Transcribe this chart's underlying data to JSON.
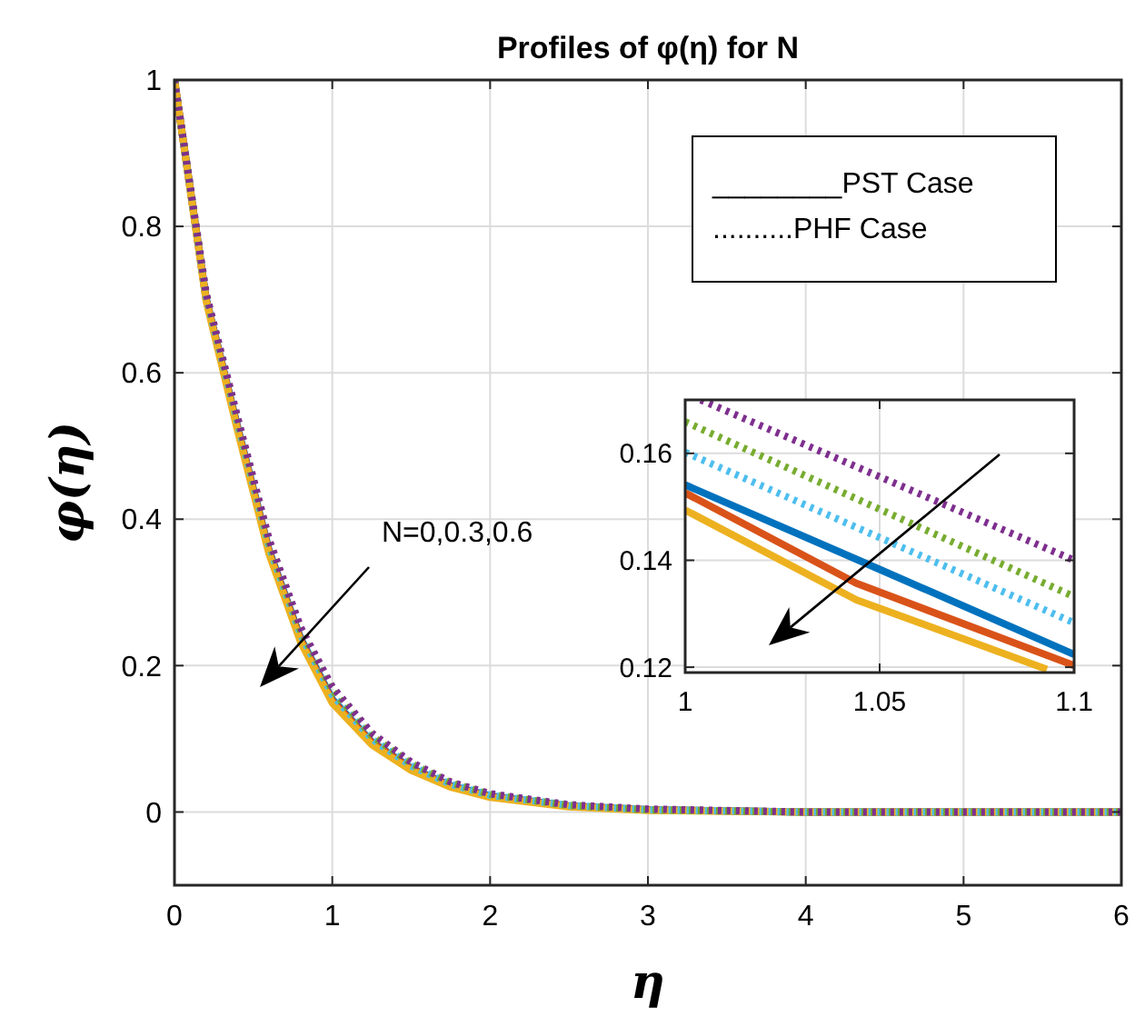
{
  "chart_data": [
    {
      "type": "line",
      "title": "Profiles of φ(η) for N",
      "xlabel": "η",
      "ylabel": "φ(η)",
      "x": [
        0,
        0.2,
        0.4,
        0.6,
        0.8,
        1,
        1.25,
        1.5,
        1.75,
        2,
        2.5,
        3,
        4,
        5,
        6
      ],
      "xlim": [
        0,
        6
      ],
      "ylim": [
        -0.1,
        1
      ],
      "xticks": [
        0,
        1,
        2,
        3,
        4,
        5,
        6
      ],
      "yticks": [
        0,
        0.2,
        0.4,
        0.6,
        0.8,
        1
      ],
      "grid": true,
      "annotations": [
        "________PST Case",
        "..........PHF Case",
        "N=0,0.3,0.6"
      ],
      "series": [
        {
          "color": "#0072bd",
          "line_style": "solid",
          "values": [
            1,
            0.702,
            0.526,
            0.357,
            0.237,
            0.154,
            0.096,
            0.06,
            0.036,
            0.022,
            0.008,
            0.003,
            0,
            0,
            0
          ]
        },
        {
          "color": "#d95319",
          "line_style": "solid",
          "values": [
            1,
            0.701,
            0.524,
            0.355,
            0.235,
            0.152,
            0.095,
            0.059,
            0.035,
            0.021,
            0.008,
            0.003,
            0,
            0,
            0
          ]
        },
        {
          "color": "#edb120",
          "line_style": "solid",
          "values": [
            1,
            0.699,
            0.521,
            0.352,
            0.232,
            0.149,
            0.092,
            0.057,
            0.034,
            0.02,
            0.007,
            0.002,
            0,
            0,
            0
          ]
        },
        {
          "color": "#4dbeee",
          "line_style": "dotted",
          "values": [
            1,
            0.705,
            0.531,
            0.362,
            0.242,
            0.16,
            0.1,
            0.063,
            0.038,
            0.023,
            0.009,
            0.003,
            0,
            0,
            0
          ]
        },
        {
          "color": "#77ac30",
          "line_style": "dotted",
          "values": [
            1,
            0.707,
            0.535,
            0.367,
            0.247,
            0.166,
            0.104,
            0.066,
            0.04,
            0.024,
            0.009,
            0.003,
            0,
            0,
            0
          ]
        },
        {
          "color": "#7e2f8e",
          "line_style": "dotted",
          "values": [
            1,
            0.709,
            0.539,
            0.372,
            0.252,
            0.171,
            0.108,
            0.068,
            0.041,
            0.025,
            0.01,
            0.004,
            0,
            0,
            0
          ]
        }
      ]
    },
    {
      "type": "line",
      "xlim": [
        1,
        1.1
      ],
      "ylim": [
        0.119,
        0.17
      ],
      "xticks": [
        1,
        1.05,
        1.1
      ],
      "yticks": [
        0.12,
        0.14,
        0.16
      ],
      "grid": true,
      "series": [
        {
          "color": "#0072bd",
          "line_style": "solid",
          "x": [
            1,
            1.05,
            1.1
          ],
          "values": [
            0.1541,
            0.1383,
            0.1224
          ]
        },
        {
          "color": "#d95319",
          "line_style": "solid",
          "x": [
            1,
            1.044,
            1.1
          ],
          "values": [
            0.1526,
            0.1357,
            0.1203
          ]
        },
        {
          "color": "#edb120",
          "line_style": "solid",
          "x": [
            1,
            1.044,
            1.093
          ],
          "values": [
            0.1494,
            0.1326,
            0.1196
          ]
        },
        {
          "color": "#4dbeee",
          "line_style": "dotted",
          "x": [
            1,
            1.1
          ],
          "values": [
            0.1602,
            0.1283
          ]
        },
        {
          "color": "#77ac30",
          "line_style": "dotted",
          "x": [
            1,
            1.1
          ],
          "values": [
            0.1659,
            0.1332
          ]
        },
        {
          "color": "#7e2f8e",
          "line_style": "dotted",
          "x": [
            1.004,
            1.1
          ],
          "values": [
            0.17,
            0.14
          ]
        }
      ]
    }
  ]
}
